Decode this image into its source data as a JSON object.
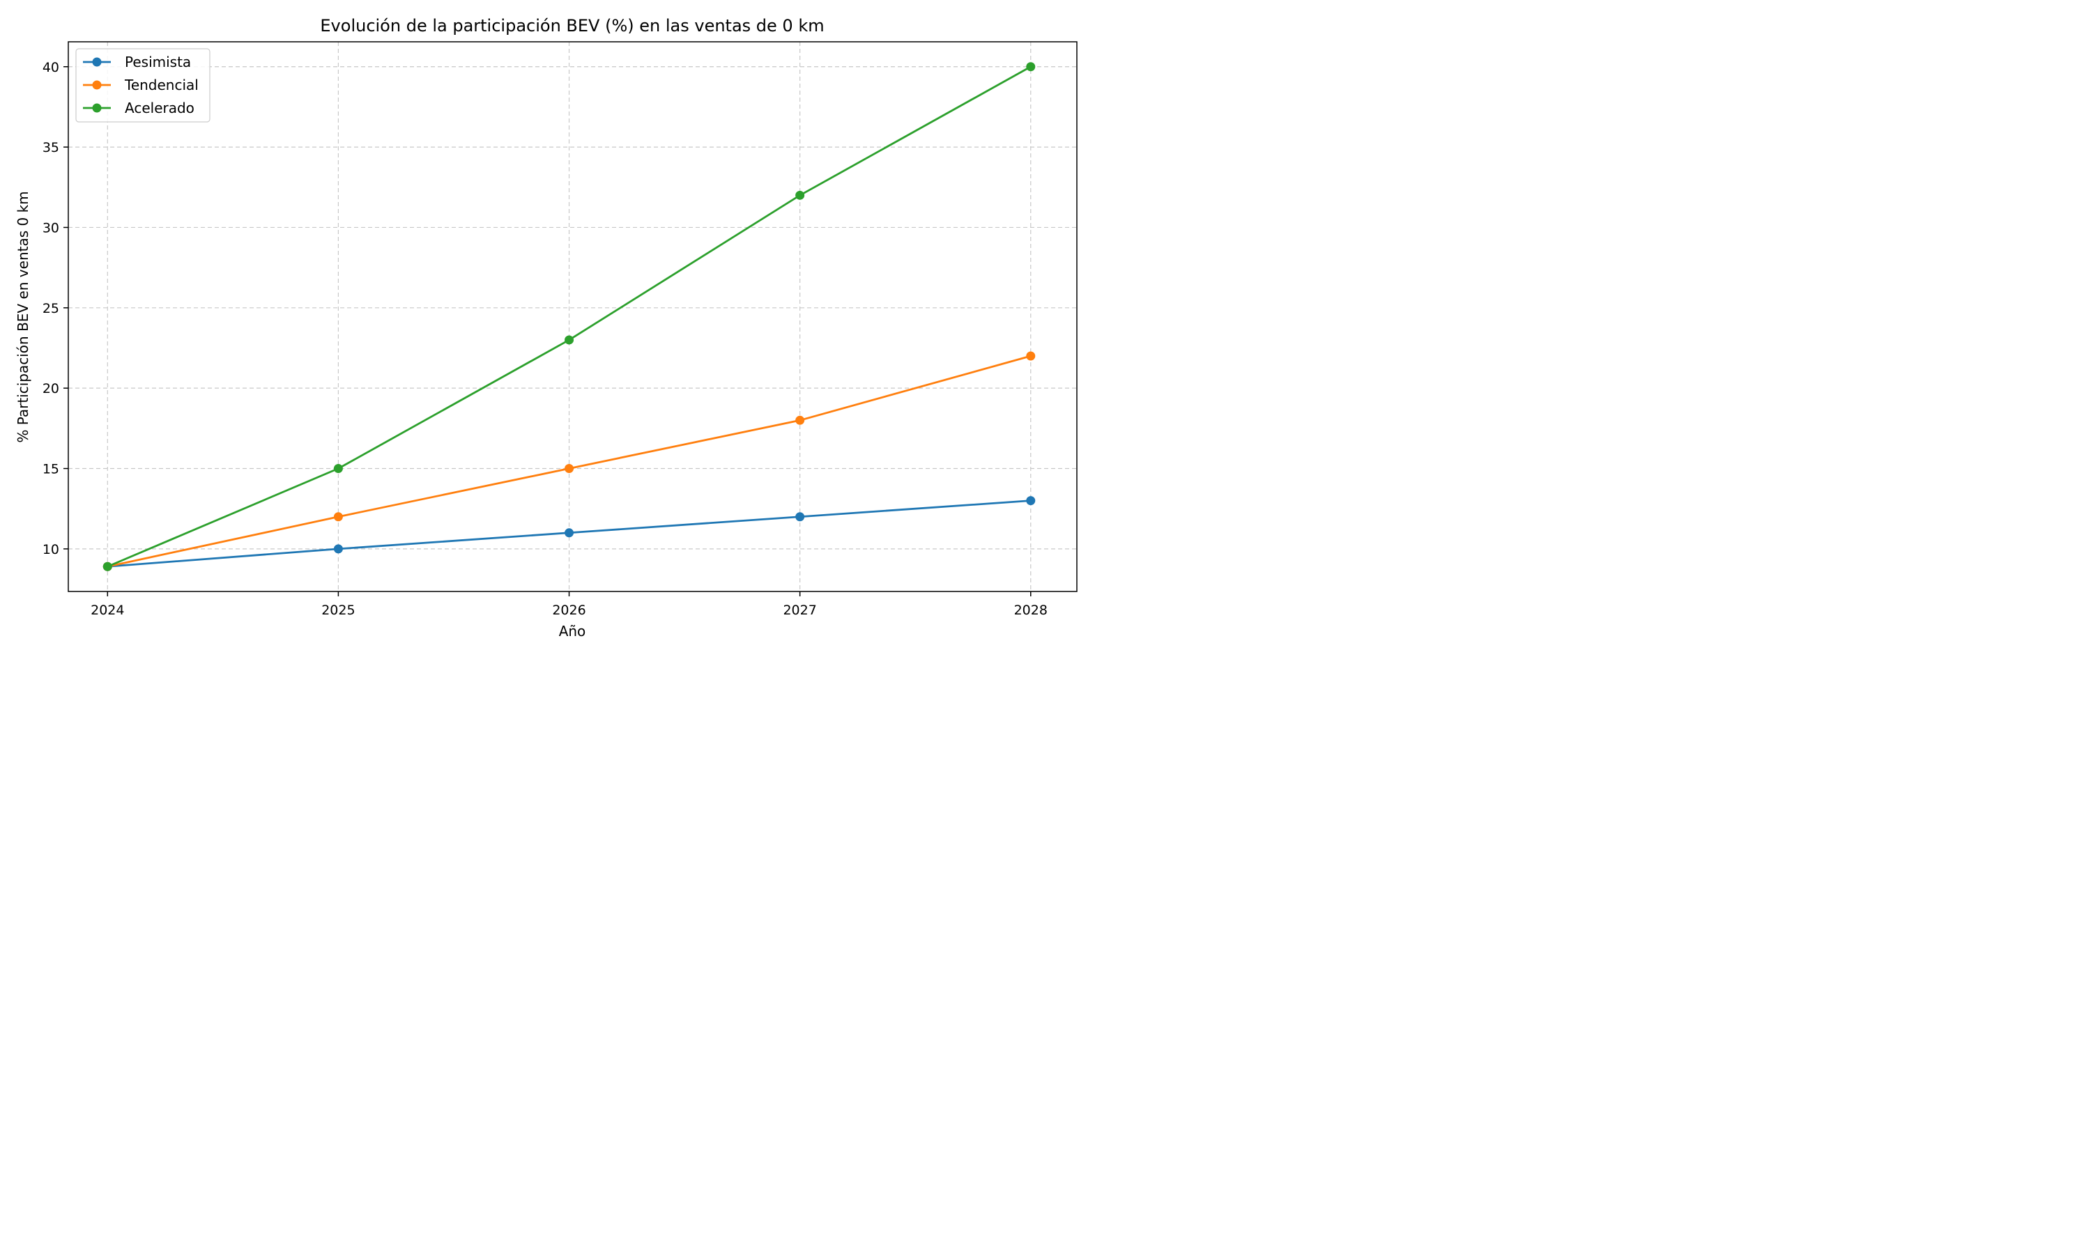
{
  "chart_data": {
    "type": "line",
    "title": "Evolución de la participación BEV (%) en las ventas de 0 km",
    "xlabel": "Año",
    "ylabel": "% Participación BEV en ventas 0 km",
    "x": [
      2024,
      2025,
      2026,
      2027,
      2028
    ],
    "xticks": [
      "2024",
      "2025",
      "2026",
      "2027",
      "2028"
    ],
    "yticks": [
      10,
      15,
      20,
      25,
      30,
      35,
      40
    ],
    "xlim": [
      2023.83,
      2028.2
    ],
    "ylim": [
      7.35,
      41.55
    ],
    "grid": true,
    "legend_position": "top-left",
    "series": [
      {
        "name": "Pesimista",
        "color": "#1f77b4",
        "values": [
          8.9,
          10,
          11,
          12,
          13
        ]
      },
      {
        "name": "Tendencial",
        "color": "#ff7f0e",
        "values": [
          8.9,
          12,
          15,
          18,
          22
        ]
      },
      {
        "name": "Acelerado",
        "color": "#2ca02c",
        "values": [
          8.9,
          15,
          23,
          32,
          40
        ]
      }
    ]
  }
}
